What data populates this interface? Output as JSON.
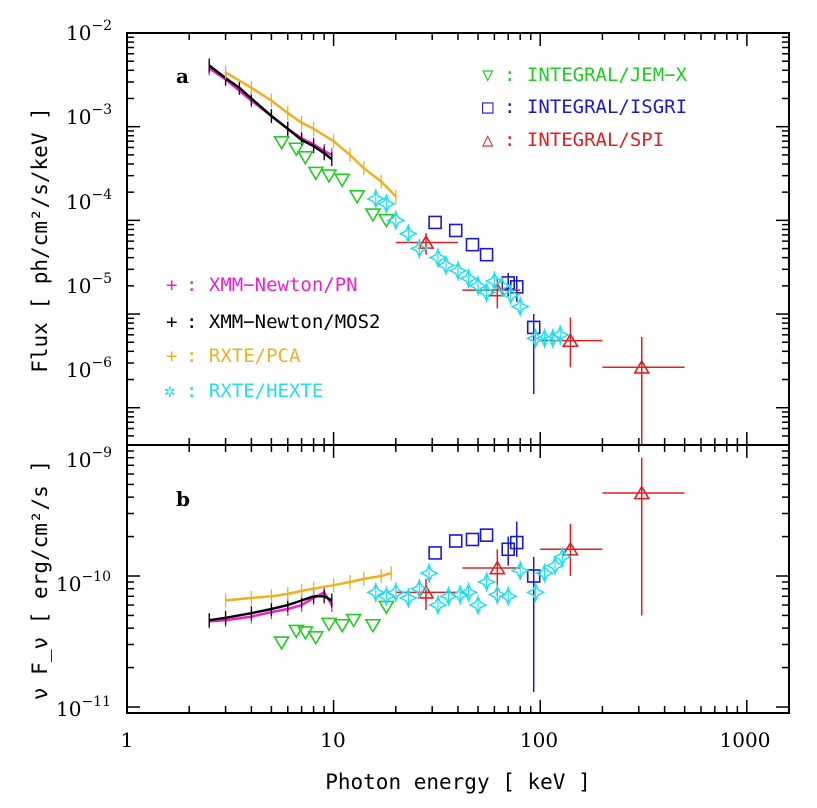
{
  "chart_data": [
    {
      "type": "scatter",
      "panel_label": "a",
      "xlabel": "Photon energy [ keV ]",
      "ylabel": "Flux [ ph/cm²/s/keV ]",
      "x_scale": "log",
      "y_scale": "log",
      "xlim": [
        1,
        1600
      ],
      "ylim": [
        4e-07,
        0.01
      ],
      "xticks": [
        {
          "value": 1,
          "label": "1"
        },
        {
          "value": 10,
          "label": "10"
        },
        {
          "value": 100,
          "label": "100"
        },
        {
          "value": 1000,
          "label": "1000"
        }
      ],
      "yticks": [
        {
          "value": 0.01,
          "base": "10",
          "exp": "−2"
        },
        {
          "value": 0.001,
          "base": "10",
          "exp": "−3"
        },
        {
          "value": 0.0001,
          "base": "10",
          "exp": "−4"
        },
        {
          "value": 1e-05,
          "base": "10",
          "exp": "−5"
        },
        {
          "value": 1e-06,
          "base": "10",
          "exp": "−6"
        }
      ],
      "legend": [
        {
          "symbol": "▽",
          "text": ": INTEGRAL/JEM−X",
          "color": "#22cc22",
          "position": "top-right"
        },
        {
          "symbol": "□",
          "text": ": INTEGRAL/ISGRI",
          "color": "#1a1acc",
          "position": "top-right"
        },
        {
          "symbol": "△",
          "text": ": INTEGRAL/SPI",
          "color": "#dd2222",
          "position": "top-right"
        },
        {
          "symbol": "+",
          "text": ": XMM−Newton/PN",
          "color": "#ee22cc",
          "position": "lower-left"
        },
        {
          "symbol": "+",
          "text": ": XMM−Newton/MOS2",
          "color": "#000000",
          "position": "lower-left"
        },
        {
          "symbol": "+",
          "text": ": RXTE/PCA",
          "color": "#f0b020",
          "position": "lower-left"
        },
        {
          "symbol": "✲",
          "text": ": RXTE/HEXTE",
          "color": "#22ddee",
          "position": "lower-left"
        }
      ],
      "series": [
        {
          "name": "INTEGRAL/JEM-X",
          "color": "#22cc22",
          "marker": "down-triangle",
          "points": [
            [
              5.6,
              0.00068
            ],
            [
              6.6,
              0.00058
            ],
            [
              7.3,
              0.00047
            ],
            [
              8.2,
              0.00032
            ],
            [
              9.5,
              0.0003
            ],
            [
              11,
              0.00027
            ],
            [
              13,
              0.00018
            ],
            [
              15.5,
              0.000115
            ],
            [
              18,
              0.0001
            ]
          ]
        },
        {
          "name": "INTEGRAL/ISGRI",
          "color": "#1a1acc",
          "marker": "square",
          "points": [
            [
              31,
              9.5e-05
            ],
            [
              39,
              7.8e-05
            ],
            [
              47,
              5.5e-05
            ],
            [
              55,
              4.3e-05
            ],
            [
              70,
              2.15e-05
            ],
            [
              77,
              1.95e-05
            ],
            [
              93,
              7.2e-06
            ]
          ],
          "yerr": [
            [
              0,
              0
            ],
            [
              0,
              0
            ],
            [
              0,
              0
            ],
            [
              0,
              0
            ],
            [
              6e-06,
              6e-06
            ],
            [
              6e-06,
              6e-06
            ],
            [
              5.8e-06,
              2.8e-06
            ]
          ]
        },
        {
          "name": "INTEGRAL/SPI",
          "color": "#dd2222",
          "marker": "up-triangle",
          "points": [
            [
              28,
              5.8e-05
            ],
            [
              62,
              1.8e-05
            ],
            [
              140,
              5.2e-06
            ],
            [
              310,
              2.7e-06
            ]
          ],
          "xerr": [
            [
              8,
              12
            ],
            [
              20,
              18
            ],
            [
              40,
              60
            ],
            [
              110,
              190
            ]
          ],
          "yerr": [
            [
              1.5e-05,
              1.5e-05
            ],
            [
              6.5e-06,
              6.5e-06
            ],
            [
              2.5e-06,
              4e-06
            ],
            [
              2.4e-06,
              3e-06
            ]
          ]
        },
        {
          "name": "RXTE/HEXTE",
          "color": "#22ddee",
          "marker": "star",
          "points": [
            [
              16,
              0.00017
            ],
            [
              18,
              0.00015
            ],
            [
              20,
              0.0001
            ],
            [
              23,
              7.2e-05
            ],
            [
              26,
              5e-05
            ],
            [
              32,
              4e-05
            ],
            [
              35,
              3.3e-05
            ],
            [
              40,
              2.9e-05
            ],
            [
              45,
              2.4e-05
            ],
            [
              50,
              2e-05
            ],
            [
              55,
              1.7e-05
            ],
            [
              60,
              2.25e-05
            ],
            [
              65,
              2e-05
            ],
            [
              72,
              1.6e-05
            ],
            [
              80,
              1.2e-05
            ],
            [
              95,
              5.5e-06
            ],
            [
              105,
              5.5e-06
            ],
            [
              115,
              5.5e-06
            ],
            [
              125,
              6e-06
            ]
          ]
        },
        {
          "name": "XMM-Newton/PN",
          "color": "#ee22cc",
          "marker": "cross",
          "curve": [
            [
              2.5,
              0.0042
            ],
            [
              3,
              0.0032
            ],
            [
              4,
              0.0019
            ],
            [
              5,
              0.0013
            ],
            [
              6,
              0.00095
            ],
            [
              7,
              0.00075
            ],
            [
              8,
              0.00065
            ],
            [
              9,
              0.00055
            ],
            [
              9.8,
              0.0005
            ]
          ]
        },
        {
          "name": "XMM-Newton/MOS2",
          "color": "#000000",
          "marker": "cross",
          "curve": [
            [
              2.5,
              0.0045
            ],
            [
              3,
              0.0033
            ],
            [
              3.5,
              0.0026
            ],
            [
              4,
              0.002
            ],
            [
              5,
              0.0013
            ],
            [
              6,
              0.00095
            ],
            [
              7,
              0.00072
            ],
            [
              8,
              0.00062
            ],
            [
              9,
              0.00052
            ],
            [
              9.8,
              0.00045
            ]
          ]
        },
        {
          "name": "RXTE/PCA",
          "color": "#f0b020",
          "marker": "cross",
          "curve": [
            [
              3,
              0.0038
            ],
            [
              4,
              0.0026
            ],
            [
              5,
              0.0019
            ],
            [
              6,
              0.0014
            ],
            [
              7,
              0.0011
            ],
            [
              8,
              0.00095
            ],
            [
              10,
              0.0007
            ],
            [
              12,
              0.0005
            ],
            [
              14,
              0.00036
            ],
            [
              17,
              0.00026
            ],
            [
              20,
              0.00018
            ]
          ]
        }
      ]
    },
    {
      "type": "scatter",
      "panel_label": "b",
      "xlabel": "Photon energy [ keV ]",
      "ylabel": "ν F_ν [ erg/cm²/s ]",
      "x_scale": "log",
      "y_scale": "log",
      "xlim": [
        1,
        1600
      ],
      "ylim": [
        9e-12,
        1e-09
      ],
      "yticks": [
        {
          "value": 1e-09,
          "base": "10",
          "exp": "−9"
        },
        {
          "value": 1e-10,
          "base": "10",
          "exp": "−10"
        },
        {
          "value": 1e-11,
          "base": "10",
          "exp": "−11"
        }
      ],
      "series": [
        {
          "name": "INTEGRAL/JEM-X",
          "color": "#22cc22",
          "marker": "down-triangle",
          "points": [
            [
              5.6,
              3.1e-11
            ],
            [
              6.6,
              3.8e-11
            ],
            [
              7.3,
              3.7e-11
            ],
            [
              8.2,
              3.4e-11
            ],
            [
              9.5,
              4.3e-11
            ],
            [
              11,
              4.2e-11
            ],
            [
              12.5,
              4.6e-11
            ],
            [
              15.5,
              4.2e-11
            ],
            [
              18,
              5.8e-11
            ]
          ]
        },
        {
          "name": "INTEGRAL/ISGRI",
          "color": "#1a1acc",
          "marker": "square",
          "points": [
            [
              31,
              1.5e-10
            ],
            [
              39,
              1.85e-10
            ],
            [
              47,
              1.9e-10
            ],
            [
              55,
              2.05e-10
            ],
            [
              70,
              1.6e-10
            ],
            [
              77,
              1.8e-10
            ],
            [
              93,
              1e-10
            ]
          ],
          "yerr": [
            [
              0,
              0
            ],
            [
              0,
              0
            ],
            [
              0,
              0
            ],
            [
              0,
              0
            ],
            [
              4e-11,
              4e-11
            ],
            [
              4e-11,
              8e-11
            ],
            [
              8.7e-11,
              4e-11
            ]
          ]
        },
        {
          "name": "INTEGRAL/SPI",
          "color": "#dd2222",
          "marker": "up-triangle",
          "points": [
            [
              28,
              7.5e-11
            ],
            [
              62,
              1.15e-10
            ],
            [
              140,
              1.6e-10
            ],
            [
              310,
              4.3e-10
            ]
          ],
          "xerr": [
            [
              8,
              12
            ],
            [
              20,
              18
            ],
            [
              40,
              60
            ],
            [
              110,
              190
            ]
          ],
          "yerr": [
            [
              2e-11,
              2e-11
            ],
            [
              4.5e-11,
              4.5e-11
            ],
            [
              6e-11,
              9e-11
            ],
            [
              3.8e-10,
              3.7e-10
            ]
          ]
        },
        {
          "name": "RXTE/HEXTE",
          "color": "#22ddee",
          "marker": "star",
          "points": [
            [
              16,
              7.5e-11
            ],
            [
              18,
              7e-11
            ],
            [
              20,
              7.5e-11
            ],
            [
              23,
              6.8e-11
            ],
            [
              26,
              8e-11
            ],
            [
              29,
              1.05e-10
            ],
            [
              32,
              6e-11
            ],
            [
              36,
              7e-11
            ],
            [
              41,
              7.2e-11
            ],
            [
              45,
              7.5e-11
            ],
            [
              50,
              6e-11
            ],
            [
              55,
              9e-11
            ],
            [
              62,
              7.2e-11
            ],
            [
              70,
              7e-11
            ],
            [
              80,
              1.1e-10
            ],
            [
              95,
              7.5e-11
            ],
            [
              105,
              1.05e-10
            ],
            [
              118,
              1.2e-10
            ],
            [
              128,
              1.4e-10
            ]
          ]
        },
        {
          "name": "XMM-Newton/PN",
          "color": "#ee22cc",
          "marker": "cross",
          "curve": [
            [
              2.5,
              4.5e-11
            ],
            [
              3,
              4.6e-11
            ],
            [
              4,
              4.9e-11
            ],
            [
              5,
              5.3e-11
            ],
            [
              6,
              5.6e-11
            ],
            [
              7,
              6e-11
            ],
            [
              8,
              6.8e-11
            ],
            [
              9,
              7.5e-11
            ],
            [
              9.8,
              6e-11
            ]
          ]
        },
        {
          "name": "XMM-Newton/MOS2",
          "color": "#000000",
          "marker": "cross",
          "curve": [
            [
              2.5,
              4.6e-11
            ],
            [
              3,
              4.8e-11
            ],
            [
              4,
              5.2e-11
            ],
            [
              5,
              5.6e-11
            ],
            [
              6,
              6e-11
            ],
            [
              7,
              6.5e-11
            ],
            [
              8,
              7e-11
            ],
            [
              9,
              7e-11
            ],
            [
              9.8,
              6.5e-11
            ]
          ]
        },
        {
          "name": "RXTE/PCA",
          "color": "#f0b020",
          "marker": "cross",
          "curve": [
            [
              3,
              6.5e-11
            ],
            [
              4,
              6.8e-11
            ],
            [
              5,
              7e-11
            ],
            [
              6,
              7.3e-11
            ],
            [
              7,
              7.7e-11
            ],
            [
              8,
              8e-11
            ],
            [
              10,
              8.5e-11
            ],
            [
              12,
              9e-11
            ],
            [
              14,
              9.5e-11
            ],
            [
              17,
              1e-10
            ],
            [
              19,
              1.05e-10
            ]
          ]
        }
      ]
    }
  ]
}
